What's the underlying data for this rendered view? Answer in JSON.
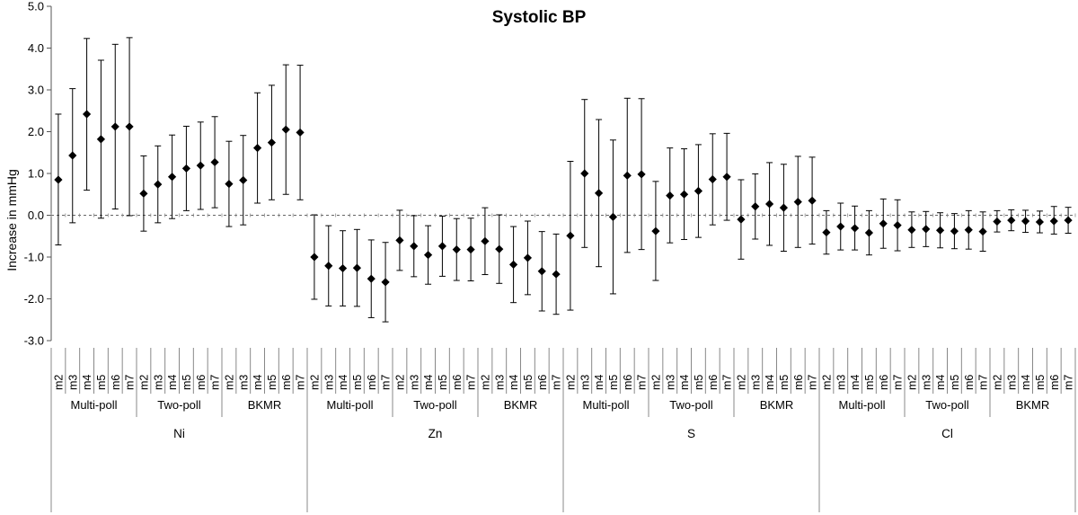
{
  "chart_data": {
    "type": "scatter",
    "subtype": "point-with-error-bars",
    "title": "Systolic BP",
    "ylabel": "Increase in mmHg",
    "ylim": [
      -3.0,
      5.0
    ],
    "yticks": [
      "5.0",
      "4.0",
      "3.0",
      "2.0",
      "1.0",
      "0.0",
      "-1.0",
      "-2.0",
      "-3.0"
    ],
    "reference_line": 0,
    "reference_line_style": "dashed",
    "marker": "diamond",
    "marker_color": "#000000",
    "metals": [
      {
        "name": "Ni",
        "groups": [
          {
            "name": "Multi-poll",
            "points": [
              {
                "label": "m2",
                "value": 0.85,
                "low": -0.71,
                "high": 2.42
              },
              {
                "label": "m3",
                "value": 1.43,
                "low": -0.18,
                "high": 3.03
              },
              {
                "label": "m4",
                "value": 2.42,
                "low": 0.6,
                "high": 4.23
              },
              {
                "label": "m5",
                "value": 1.82,
                "low": -0.07,
                "high": 3.71
              },
              {
                "label": "m6",
                "value": 2.12,
                "low": 0.15,
                "high": 4.09
              },
              {
                "label": "m7",
                "value": 2.12,
                "low": -0.01,
                "high": 4.25
              }
            ]
          },
          {
            "name": "Two-poll",
            "points": [
              {
                "label": "m2",
                "value": 0.52,
                "low": -0.38,
                "high": 1.42
              },
              {
                "label": "m3",
                "value": 0.74,
                "low": -0.18,
                "high": 1.66
              },
              {
                "label": "m4",
                "value": 0.92,
                "low": -0.08,
                "high": 1.92
              },
              {
                "label": "m5",
                "value": 1.12,
                "low": 0.11,
                "high": 2.13
              },
              {
                "label": "m6",
                "value": 1.19,
                "low": 0.14,
                "high": 2.23
              },
              {
                "label": "m7",
                "value": 1.27,
                "low": 0.18,
                "high": 2.36
              }
            ]
          },
          {
            "name": "BKMR",
            "points": [
              {
                "label": "m2",
                "value": 0.75,
                "low": -0.27,
                "high": 1.77
              },
              {
                "label": "m3",
                "value": 0.84,
                "low": -0.23,
                "high": 1.91
              },
              {
                "label": "m4",
                "value": 1.61,
                "low": 0.29,
                "high": 2.93
              },
              {
                "label": "m5",
                "value": 1.74,
                "low": 0.37,
                "high": 3.11
              },
              {
                "label": "m6",
                "value": 2.05,
                "low": 0.5,
                "high": 3.6
              },
              {
                "label": "m7",
                "value": 1.98,
                "low": 0.37,
                "high": 3.59
              }
            ]
          }
        ]
      },
      {
        "name": "Zn",
        "groups": [
          {
            "name": "Multi-poll",
            "points": [
              {
                "label": "m2",
                "value": -1.0,
                "low": -2.01,
                "high": 0.01
              },
              {
                "label": "m3",
                "value": -1.21,
                "low": -2.17,
                "high": -0.25
              },
              {
                "label": "m4",
                "value": -1.27,
                "low": -2.17,
                "high": -0.37
              },
              {
                "label": "m5",
                "value": -1.26,
                "low": -2.18,
                "high": -0.34
              },
              {
                "label": "m6",
                "value": -1.52,
                "low": -2.45,
                "high": -0.59
              },
              {
                "label": "m7",
                "value": -1.6,
                "low": -2.55,
                "high": -0.65
              }
            ]
          },
          {
            "name": "Two-poll",
            "points": [
              {
                "label": "m2",
                "value": -0.6,
                "low": -1.32,
                "high": 0.12
              },
              {
                "label": "m3",
                "value": -0.74,
                "low": -1.47,
                "high": -0.01
              },
              {
                "label": "m4",
                "value": -0.95,
                "low": -1.65,
                "high": -0.25
              },
              {
                "label": "m5",
                "value": -0.74,
                "low": -1.46,
                "high": -0.02
              },
              {
                "label": "m6",
                "value": -0.82,
                "low": -1.56,
                "high": -0.08
              },
              {
                "label": "m7",
                "value": -0.82,
                "low": -1.57,
                "high": -0.07
              }
            ]
          },
          {
            "name": "BKMR",
            "points": [
              {
                "label": "m2",
                "value": -0.62,
                "low": -1.42,
                "high": 0.18
              },
              {
                "label": "m3",
                "value": -0.81,
                "low": -1.63,
                "high": 0.01
              },
              {
                "label": "m4",
                "value": -1.18,
                "low": -2.09,
                "high": -0.27
              },
              {
                "label": "m5",
                "value": -1.02,
                "low": -1.9,
                "high": -0.14
              },
              {
                "label": "m6",
                "value": -1.34,
                "low": -2.29,
                "high": -0.39
              },
              {
                "label": "m7",
                "value": -1.41,
                "low": -2.37,
                "high": -0.45
              }
            ]
          }
        ]
      },
      {
        "name": "S",
        "groups": [
          {
            "name": "Multi-poll",
            "points": [
              {
                "label": "m2",
                "value": -0.49,
                "low": -2.27,
                "high": 1.29
              },
              {
                "label": "m3",
                "value": 1.0,
                "low": -0.77,
                "high": 2.77
              },
              {
                "label": "m4",
                "value": 0.53,
                "low": -1.23,
                "high": 2.29
              },
              {
                "label": "m5",
                "value": -0.04,
                "low": -1.88,
                "high": 1.8
              },
              {
                "label": "m6",
                "value": 0.95,
                "low": -0.89,
                "high": 2.8
              },
              {
                "label": "m7",
                "value": 0.98,
                "low": -0.82,
                "high": 2.79
              }
            ]
          },
          {
            "name": "Two-poll",
            "points": [
              {
                "label": "m2",
                "value": -0.38,
                "low": -1.56,
                "high": 0.81
              },
              {
                "label": "m3",
                "value": 0.47,
                "low": -0.66,
                "high": 1.61
              },
              {
                "label": "m4",
                "value": 0.5,
                "low": -0.58,
                "high": 1.59
              },
              {
                "label": "m5",
                "value": 0.58,
                "low": -0.53,
                "high": 1.69
              },
              {
                "label": "m6",
                "value": 0.86,
                "low": -0.23,
                "high": 1.95
              },
              {
                "label": "m7",
                "value": 0.92,
                "low": -0.12,
                "high": 1.96
              }
            ]
          },
          {
            "name": "BKMR",
            "points": [
              {
                "label": "m2",
                "value": -0.1,
                "low": -1.05,
                "high": 0.85
              },
              {
                "label": "m3",
                "value": 0.21,
                "low": -0.57,
                "high": 0.99
              },
              {
                "label": "m4",
                "value": 0.27,
                "low": -0.72,
                "high": 1.26
              },
              {
                "label": "m5",
                "value": 0.18,
                "low": -0.86,
                "high": 1.22
              },
              {
                "label": "m6",
                "value": 0.32,
                "low": -0.77,
                "high": 1.41
              },
              {
                "label": "m7",
                "value": 0.35,
                "low": -0.69,
                "high": 1.39
              }
            ]
          }
        ]
      },
      {
        "name": "Cl",
        "groups": [
          {
            "name": "Multi-poll",
            "points": [
              {
                "label": "m2",
                "value": -0.41,
                "low": -0.93,
                "high": 0.11
              },
              {
                "label": "m3",
                "value": -0.27,
                "low": -0.83,
                "high": 0.29
              },
              {
                "label": "m4",
                "value": -0.31,
                "low": -0.83,
                "high": 0.22
              },
              {
                "label": "m5",
                "value": -0.42,
                "low": -0.95,
                "high": 0.11
              },
              {
                "label": "m6",
                "value": -0.2,
                "low": -0.79,
                "high": 0.39
              },
              {
                "label": "m7",
                "value": -0.24,
                "low": -0.85,
                "high": 0.37
              }
            ]
          },
          {
            "name": "Two-poll",
            "points": [
              {
                "label": "m2",
                "value": -0.35,
                "low": -0.77,
                "high": 0.08
              },
              {
                "label": "m3",
                "value": -0.33,
                "low": -0.75,
                "high": 0.09
              },
              {
                "label": "m4",
                "value": -0.36,
                "low": -0.78,
                "high": 0.06
              },
              {
                "label": "m5",
                "value": -0.38,
                "low": -0.8,
                "high": 0.04
              },
              {
                "label": "m6",
                "value": -0.35,
                "low": -0.81,
                "high": 0.11
              },
              {
                "label": "m7",
                "value": -0.39,
                "low": -0.86,
                "high": 0.08
              }
            ]
          },
          {
            "name": "BKMR",
            "points": [
              {
                "label": "m2",
                "value": -0.15,
                "low": -0.4,
                "high": 0.11
              },
              {
                "label": "m3",
                "value": -0.12,
                "low": -0.37,
                "high": 0.13
              },
              {
                "label": "m4",
                "value": -0.14,
                "low": -0.41,
                "high": 0.12
              },
              {
                "label": "m5",
                "value": -0.16,
                "low": -0.42,
                "high": 0.1
              },
              {
                "label": "m6",
                "value": -0.14,
                "low": -0.45,
                "high": 0.21
              },
              {
                "label": "m7",
                "value": -0.12,
                "low": -0.43,
                "high": 0.19
              }
            ]
          }
        ]
      }
    ]
  }
}
